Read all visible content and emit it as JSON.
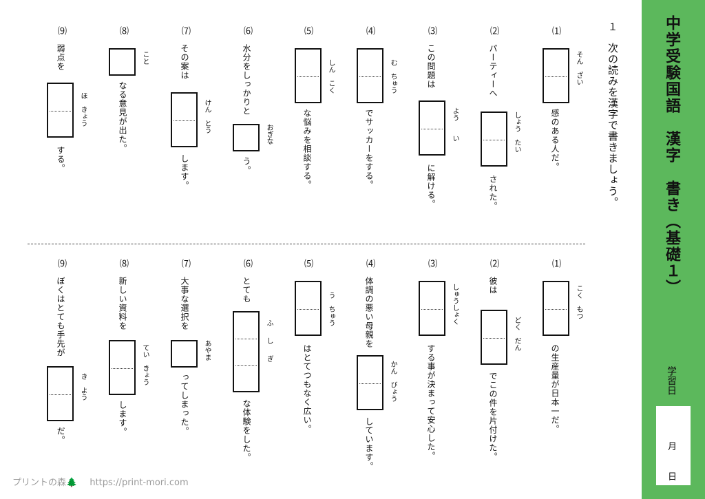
{
  "sidebar": {
    "title": "中学受験国語　漢字　書き（基礎１）",
    "study_label": "学習日",
    "month": "月",
    "day": "日"
  },
  "instruction": {
    "number": "１",
    "text": "次の読みを漢字で書きましょう。"
  },
  "top": [
    {
      "num": "⑴",
      "before": "",
      "furi": "そん　ざい",
      "after": "感のある人だ。"
    },
    {
      "num": "⑵",
      "before": "パーティーへ",
      "furi": "しょう　たい",
      "after": "された。"
    },
    {
      "num": "⑶",
      "before": "この問題は",
      "furi": "よう　　い",
      "after": "に解ける。"
    },
    {
      "num": "⑷",
      "before": "",
      "furi": "む　ちゅう",
      "after": "でサッカーをする。"
    },
    {
      "num": "⑸",
      "before": "",
      "furi": "しん　こく",
      "after": "な悩みを相談する。"
    },
    {
      "num": "⑹",
      "before": "水分をしっかりと",
      "furi": "おぎな",
      "after": "う。"
    },
    {
      "num": "⑺",
      "before": "その案は",
      "furi": "けん　とう",
      "after": "します。"
    },
    {
      "num": "⑻",
      "before": "",
      "furi": "こと",
      "after": "なる意見が出た。"
    },
    {
      "num": "⑼",
      "before": "弱点を",
      "furi": "ほ　きょう",
      "after": "する。"
    }
  ],
  "bottom": [
    {
      "num": "⑴",
      "before": "",
      "furi": "こく　もつ",
      "after": "の生産量が日本一だ。"
    },
    {
      "num": "⑵",
      "before": "彼は",
      "furi": "どく　だん",
      "after": "でこの件を片付けた。"
    },
    {
      "num": "⑶",
      "before": "",
      "furi": "しゅうしょく",
      "after": "する事が決まって安心した。"
    },
    {
      "num": "⑷",
      "before": "体調の悪い母親を",
      "furi": "かん　びょう",
      "after": "しています。"
    },
    {
      "num": "⑸",
      "before": "",
      "furi": "う　ちゅう",
      "after": "はとてつもなく広い。"
    },
    {
      "num": "⑹",
      "before": "とても",
      "furi": "ふ　し　ぎ",
      "after": "な体験をした。"
    },
    {
      "num": "⑺",
      "before": "大事な選択を",
      "furi": "あやま",
      "after": "ってしまった。"
    },
    {
      "num": "⑻",
      "before": "新しい資料を",
      "furi": "てい　きょう",
      "after": "します。"
    },
    {
      "num": "⑼",
      "before": "ぼくはとても手先が",
      "furi": "き　よう",
      "after": "だ。"
    }
  ],
  "footer": {
    "site": "プリントの森",
    "tree": "🌲",
    "url": "https://print-mori.com"
  }
}
